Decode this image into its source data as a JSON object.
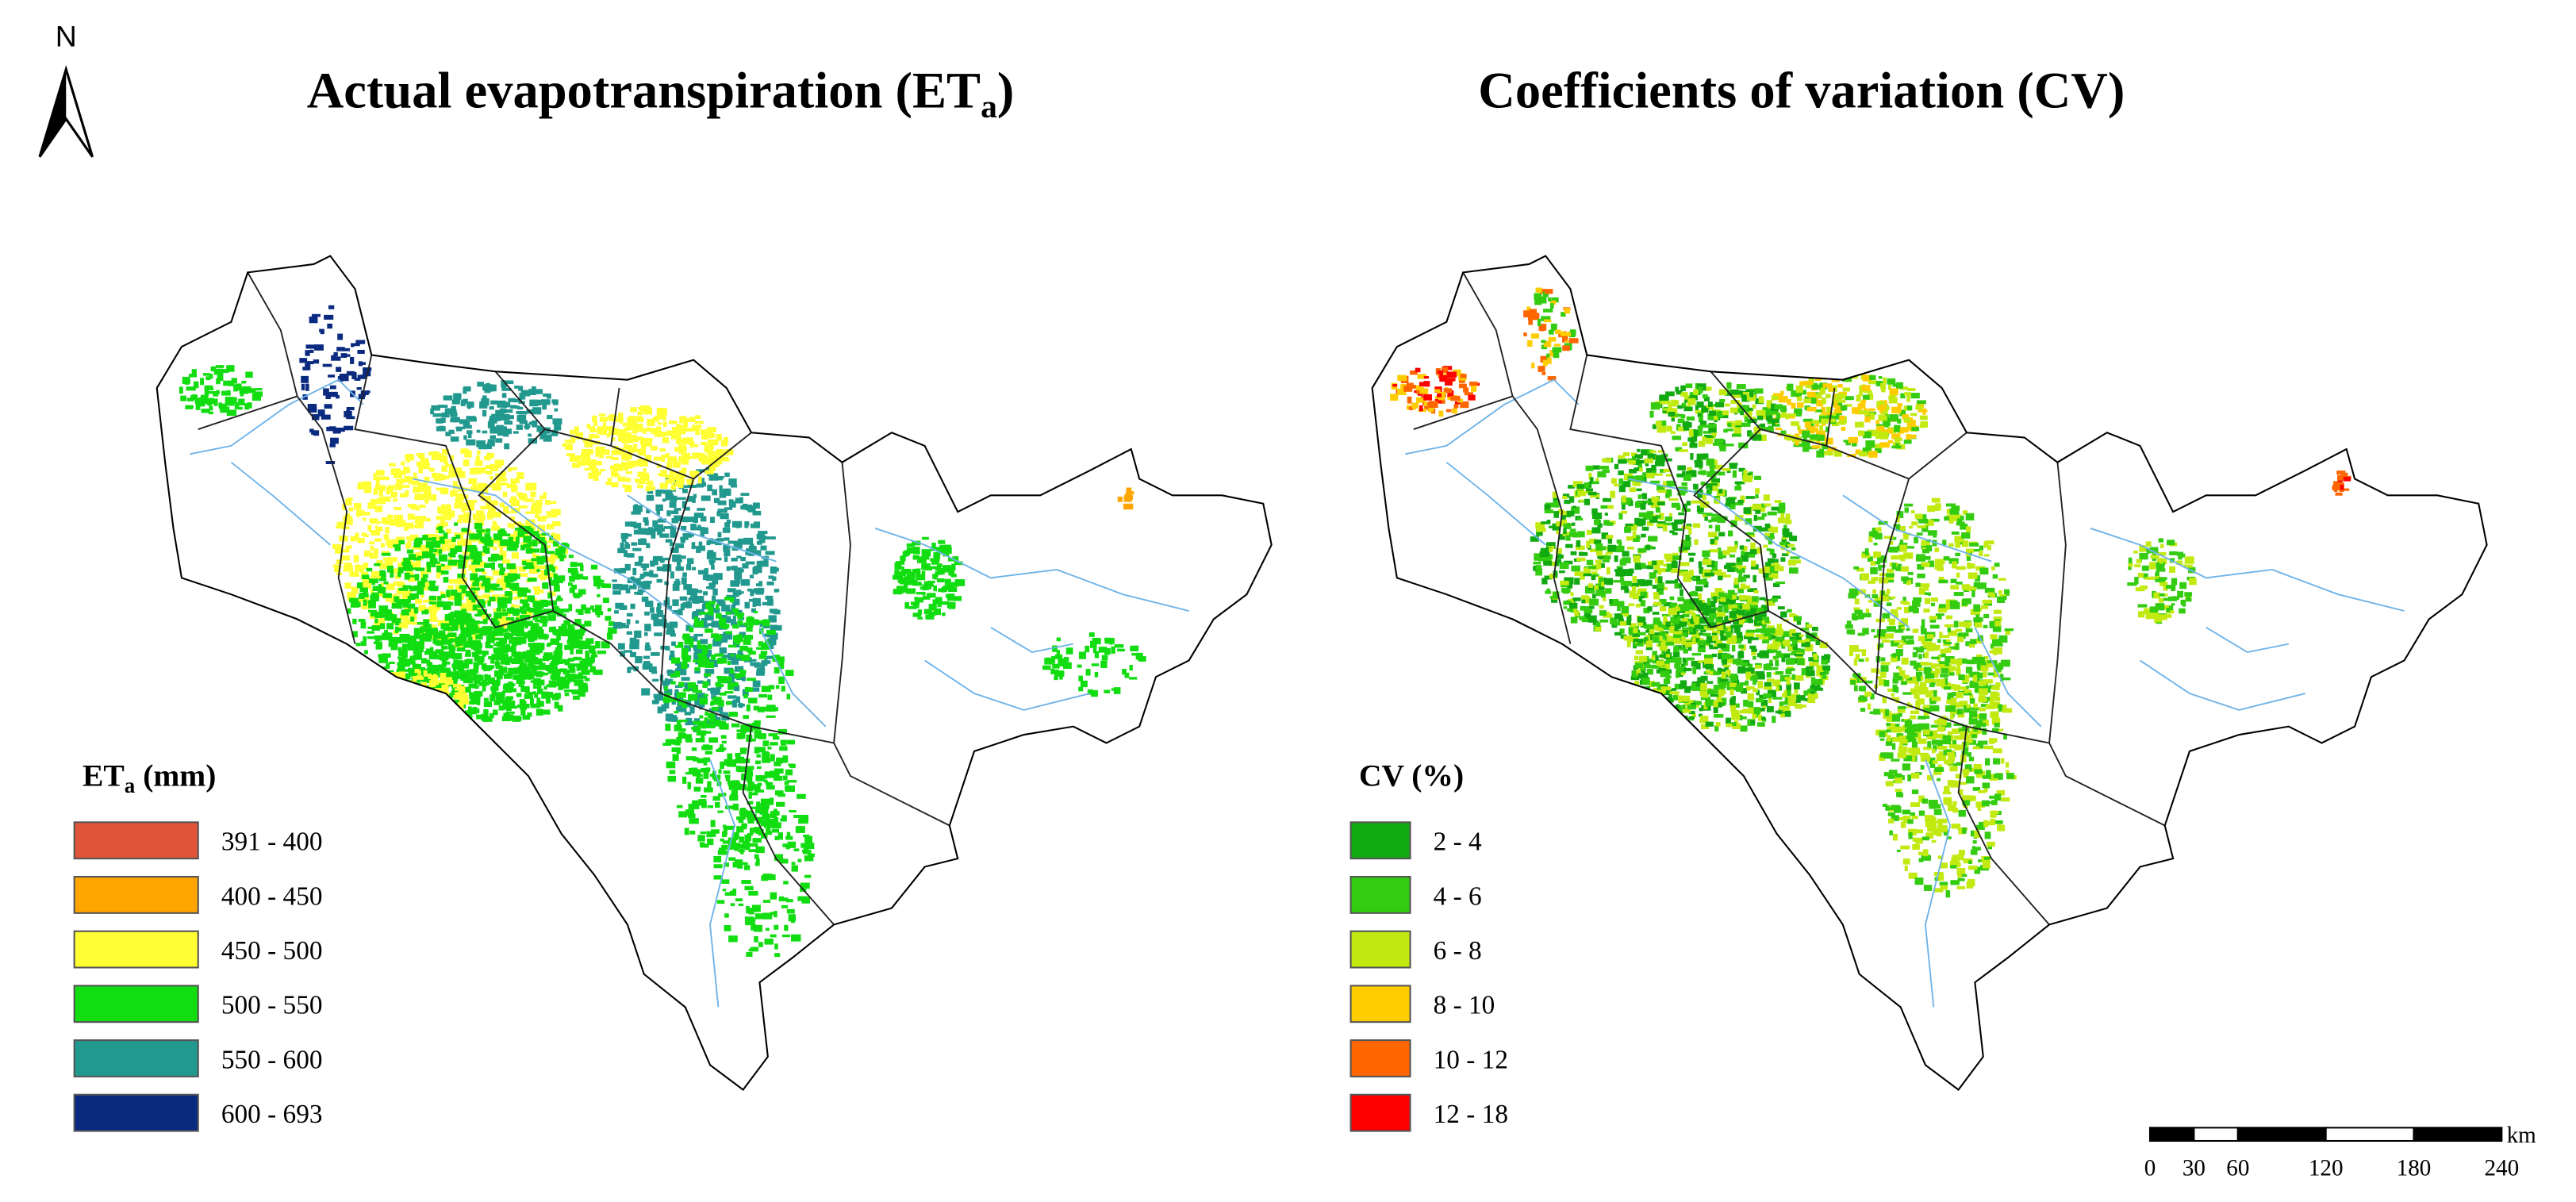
{
  "north": "N",
  "maps": [
    {
      "title": {
        "main": "Actual evapotranspiration (ET",
        "sub": "a",
        "end": ")"
      },
      "legend": {
        "title": "ET",
        "sub": "a",
        "unit": " (mm)",
        "items": [
          {
            "label": "391 - 400",
            "color": "#e0553a"
          },
          {
            "label": "400 - 450",
            "color": "#ffa500"
          },
          {
            "label": "450 - 500",
            "color": "#ffff33"
          },
          {
            "label": "500 - 550",
            "color": "#11dd11"
          },
          {
            "label": "550 - 600",
            "color": "#22998f"
          },
          {
            "label": "600 - 693",
            "color": "#0a2a80"
          }
        ]
      }
    },
    {
      "title": {
        "main": "Coefficients of variation (CV)"
      },
      "legend": {
        "title": "CV (%)",
        "items": [
          {
            "label": "2 - 4",
            "color": "#11aa11"
          },
          {
            "label": "4 - 6",
            "color": "#33cc11"
          },
          {
            "label": "6 - 8",
            "color": "#c2ea11"
          },
          {
            "label": "8 - 10",
            "color": "#ffcc00"
          },
          {
            "label": "10 - 12",
            "color": "#ff6600"
          },
          {
            "label": "12 - 18",
            "color": "#ff0000"
          }
        ]
      }
    }
  ],
  "scale_bar": {
    "unit": "km",
    "ticks": [
      0,
      30,
      60,
      120,
      180,
      240
    ]
  }
}
